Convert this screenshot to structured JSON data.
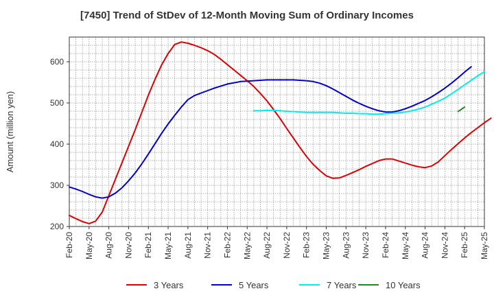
{
  "chart_data": {
    "type": "line",
    "title": "[7450]  Trend of StDev of 12-Month Moving Sum of Ordinary Incomes",
    "xlabel": "",
    "ylabel": "Amount (million yen)",
    "ylim": [
      200,
      660
    ],
    "yticks": [
      200,
      300,
      400,
      500,
      600
    ],
    "x_tick_labels": [
      "Feb-20",
      "May-20",
      "Aug-20",
      "Nov-20",
      "Feb-21",
      "May-21",
      "Aug-21",
      "Nov-21",
      "Feb-22",
      "May-22",
      "Aug-22",
      "Nov-22",
      "Feb-23",
      "May-23",
      "Aug-23",
      "Nov-23",
      "Feb-24",
      "May-24",
      "Aug-24",
      "Nov-24",
      "Feb-25",
      "May-25"
    ],
    "grid": true,
    "legend_position": "bottom",
    "series": [
      {
        "name": "3 Years",
        "color": "#dd0000",
        "start": "Feb-20",
        "values": [
          227,
          219,
          212,
          207,
          213,
          235,
          275,
          315,
          355,
          395,
          435,
          477,
          519,
          557,
          592,
          620,
          642,
          648,
          645,
          640,
          634,
          627,
          618,
          606,
          593,
          580,
          567,
          554,
          540,
          523,
          505,
          484,
          462,
          438,
          415,
          392,
          370,
          351,
          336,
          323,
          317,
          318,
          324,
          331,
          338,
          346,
          353,
          360,
          364,
          364,
          359,
          354,
          349,
          345,
          343,
          347,
          357,
          372,
          387,
          401,
          415,
          428,
          440,
          452,
          463
        ]
      },
      {
        "name": "5 Years",
        "color": "#0000cc",
        "start": "Feb-20",
        "values": [
          296,
          291,
          285,
          278,
          272,
          269,
          272,
          281,
          294,
          311,
          330,
          352,
          376,
          401,
          426,
          449,
          470,
          490,
          508,
          518,
          524,
          530,
          536,
          541,
          546,
          549,
          552,
          553,
          554,
          555,
          556,
          556,
          556,
          556,
          556,
          555,
          554,
          552,
          548,
          542,
          534,
          525,
          516,
          507,
          499,
          492,
          486,
          481,
          478,
          478,
          481,
          486,
          492,
          499,
          506,
          515,
          525,
          536,
          548,
          561,
          575,
          588
        ]
      },
      {
        "name": "7 Years",
        "color": "#00eeee",
        "start": "Jun-22",
        "values": [
          481,
          481,
          482,
          482,
          481,
          480,
          479,
          478,
          477,
          477,
          477,
          477,
          477,
          476,
          475,
          475,
          474,
          474,
          473,
          473,
          474,
          475,
          476,
          478,
          481,
          485,
          490,
          497,
          504,
          512,
          522,
          533,
          544,
          555,
          566,
          576
        ]
      },
      {
        "name": "10 Years",
        "color": "#228822",
        "start": "Jan-25",
        "values": [
          479,
          490
        ]
      }
    ]
  }
}
